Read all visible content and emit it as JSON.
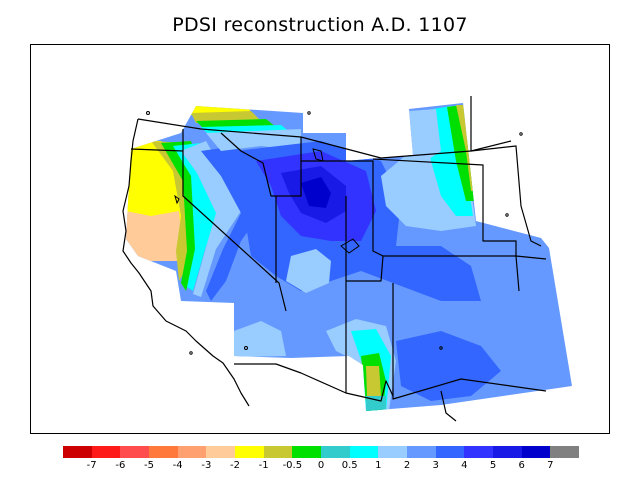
{
  "title": "PDSI reconstruction A.D. 1107",
  "colorbar": {
    "colors": [
      "#cc0000",
      "#ff1a1a",
      "#ff4d4d",
      "#ff7a3a",
      "#ffa070",
      "#ffcc99",
      "#ffff00",
      "#c8c832",
      "#00e000",
      "#33cccc",
      "#00ffff",
      "#99ccff",
      "#6699ff",
      "#3366ff",
      "#3333ff",
      "#1a1ae6",
      "#0000cc",
      "#808080"
    ],
    "labels": [
      "-7",
      "-6",
      "-5",
      "-4",
      "-3",
      "-2",
      "-1",
      "-0.5",
      "0",
      "0.5",
      "1",
      "2",
      "3",
      "4",
      "5",
      "6",
      "7"
    ]
  }
}
